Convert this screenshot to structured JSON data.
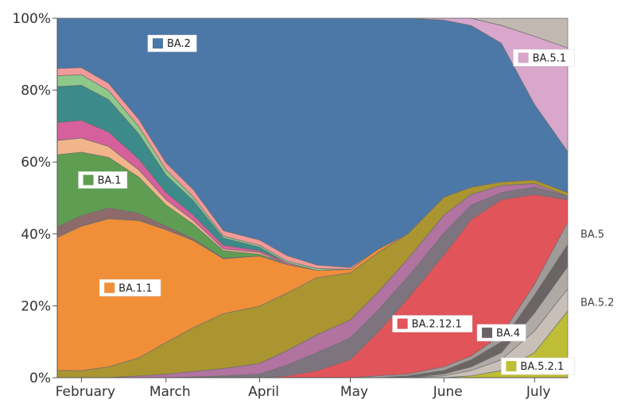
{
  "chart_data": {
    "type": "area",
    "stacked": true,
    "normalized": true,
    "ylim": [
      0,
      100
    ],
    "xlim": [
      "2022-01-24",
      "2022-07-12"
    ],
    "y_ticks": [
      "0%",
      "20%",
      "40%",
      "60%",
      "80%",
      "100%"
    ],
    "x_ticks": [
      {
        "date": "2022-02-01",
        "label": "February"
      },
      {
        "date": "2022-03-01",
        "label": "March"
      },
      {
        "date": "2022-04-01",
        "label": "April"
      },
      {
        "date": "2022-05-01",
        "label": "May"
      },
      {
        "date": "2022-06-01",
        "label": "June"
      },
      {
        "date": "2022-07-01",
        "label": "July"
      }
    ],
    "x": [
      "2022-01-24",
      "2022-02-01",
      "2022-02-10",
      "2022-02-20",
      "2022-03-01",
      "2022-03-10",
      "2022-03-20",
      "2022-04-01",
      "2022-04-10",
      "2022-04-20",
      "2022-05-01",
      "2022-05-10",
      "2022-05-20",
      "2022-06-01",
      "2022-06-10",
      "2022-06-20",
      "2022-07-01",
      "2022-07-12"
    ],
    "series": [
      {
        "name": "BA.5.2.1",
        "color": "#bfbd35",
        "values": [
          0,
          0,
          0,
          0,
          0,
          0,
          0,
          0,
          0,
          0,
          0,
          0,
          0,
          0,
          0.5,
          2,
          7,
          18
        ]
      },
      {
        "name": "",
        "color": "#c8c0b8",
        "values": [
          0,
          0,
          0,
          0,
          0,
          0,
          0,
          0,
          0,
          0,
          0,
          0,
          0,
          0.5,
          1.5,
          3,
          6,
          6
        ]
      },
      {
        "name": "BA.5.2",
        "color": "#b0aaa6",
        "values": [
          0,
          0,
          0,
          0,
          0,
          0,
          0,
          0,
          0,
          0,
          0,
          0,
          0,
          0.5,
          1,
          2,
          5,
          6
        ]
      },
      {
        "name": "BA.4",
        "color": "#6b6464",
        "values": [
          0,
          0,
          0,
          0,
          0,
          0,
          0,
          0,
          0,
          0,
          0,
          0,
          0.5,
          1,
          2,
          3,
          5,
          6
        ]
      },
      {
        "name": "BA.5",
        "color": "#a09a98",
        "values": [
          0,
          0,
          0,
          0,
          0,
          0,
          0,
          0,
          0,
          0,
          0,
          0.5,
          0.5,
          1,
          1,
          2,
          3,
          6
        ]
      },
      {
        "name": "BA.2.12.1",
        "color": "#e0545a",
        "values": [
          0,
          0,
          0,
          0,
          0,
          0,
          0,
          0,
          0.5,
          2,
          5,
          12,
          21,
          31,
          38,
          38,
          25,
          6
        ]
      },
      {
        "name": "",
        "color": "#7d7480",
        "values": [
          0,
          0,
          0,
          0,
          0,
          0.2,
          0.5,
          1,
          3,
          5,
          6,
          6,
          6,
          6,
          4,
          2,
          2,
          1
        ]
      },
      {
        "name": "",
        "color": "#b173a0",
        "values": [
          0,
          0,
          0,
          0.5,
          1,
          1.5,
          2,
          3,
          4,
          5,
          5,
          5,
          5,
          5,
          3,
          2,
          1,
          0
        ]
      },
      {
        "name": "",
        "color": "#aa9530",
        "values": [
          2,
          2,
          3,
          5,
          9,
          12,
          15,
          16,
          16,
          16,
          13,
          11,
          7,
          5,
          2,
          1,
          1,
          1
        ]
      },
      {
        "name": "BA.1.1",
        "color": "#f08f38",
        "values": [
          37,
          41,
          41,
          38,
          32,
          24,
          15,
          14,
          8,
          2,
          1,
          1,
          0,
          0,
          0,
          0,
          0,
          0
        ]
      },
      {
        "name": "",
        "color": "#8d6b6b",
        "values": [
          3,
          3,
          3,
          2,
          1,
          0.5,
          0.2,
          0,
          0,
          0,
          0,
          0,
          0,
          0,
          0,
          0,
          0,
          0
        ]
      },
      {
        "name": "BA.1",
        "color": "#5f9e52",
        "values": [
          20,
          18,
          14,
          10,
          6,
          4,
          2,
          0.5,
          0,
          0,
          0,
          0,
          0,
          0,
          0,
          0,
          0,
          0
        ]
      },
      {
        "name": "",
        "color": "#f2b48a",
        "values": [
          4,
          4,
          3,
          2,
          1.5,
          1,
          0.5,
          0.5,
          0,
          0,
          0,
          0,
          0,
          0,
          0,
          0,
          0,
          0
        ]
      },
      {
        "name": "",
        "color": "#d6609b",
        "values": [
          5,
          5,
          4,
          3,
          2,
          1.5,
          1,
          0.5,
          0.5,
          0,
          0,
          0,
          0,
          0,
          0,
          0,
          0,
          0
        ]
      },
      {
        "name": "",
        "color": "#3c8a8a",
        "values": [
          10,
          10,
          9,
          7,
          5,
          4,
          2,
          1,
          0,
          0,
          0,
          0,
          0,
          0,
          0,
          0,
          0,
          0
        ]
      },
      {
        "name": "",
        "color": "#8ec98a",
        "values": [
          3,
          3,
          2.5,
          2,
          1.5,
          1,
          0.5,
          0.5,
          0.5,
          0.5,
          0,
          0,
          0,
          0,
          0,
          0,
          0,
          0
        ]
      },
      {
        "name": "",
        "color": "#f29a9a",
        "values": [
          2,
          2,
          2,
          2,
          2,
          2,
          1.5,
          1.5,
          1.5,
          1,
          0.5,
          0,
          0,
          0,
          0,
          0,
          0,
          0
        ]
      },
      {
        "name": "BA.2",
        "color": "#4c78a8",
        "values": [
          14,
          14,
          18,
          28,
          41,
          47,
          58,
          62,
          66,
          69,
          69,
          64,
          60,
          49,
          45,
          39,
          21,
          11
        ]
      },
      {
        "name": "BA.5.1",
        "color": "#d8a7cb",
        "values": [
          0,
          0,
          0,
          0,
          0,
          0,
          0,
          0,
          0,
          0,
          0,
          0,
          0,
          0.5,
          2,
          5,
          19,
          28
        ]
      },
      {
        "name": "",
        "color": "#c2b8b2",
        "values": [
          0,
          0,
          0,
          0,
          0,
          0,
          0,
          0,
          0,
          0,
          0,
          0,
          0,
          0,
          0,
          2,
          5,
          8
        ]
      }
    ],
    "labels": [
      {
        "text": "BA.2",
        "color": "#4c78a8",
        "date": "2022-02-23",
        "value": 93,
        "boxed": true
      },
      {
        "text": "BA.5.1",
        "color": "#d8a7cb",
        "date": "2022-06-24",
        "value": 89,
        "boxed": true
      },
      {
        "text": "BA.1",
        "color": "#5f9e52",
        "date": "2022-01-31",
        "value": 55,
        "boxed": true
      },
      {
        "text": "BA.1.1",
        "color": "#f08f38",
        "date": "2022-02-07",
        "value": 25,
        "boxed": true
      },
      {
        "text": "BA.2.12.1",
        "color": "#e0545a",
        "date": "2022-05-15",
        "value": 15,
        "boxed": true
      },
      {
        "text": "BA.4",
        "color": "#6b6464",
        "date": "2022-06-12",
        "value": 12.5,
        "boxed": true
      },
      {
        "text": "BA.5.2.1",
        "color": "#bfbd35",
        "date": "2022-06-20",
        "value": 3.2,
        "boxed": true
      },
      {
        "text": "BA.5",
        "color": "#a09a98",
        "date": "2022-07-12",
        "value": 40,
        "boxed": false
      },
      {
        "text": "BA.5.2",
        "color": "#b0aaa6",
        "date": "2022-07-12",
        "value": 21,
        "boxed": false
      }
    ]
  }
}
